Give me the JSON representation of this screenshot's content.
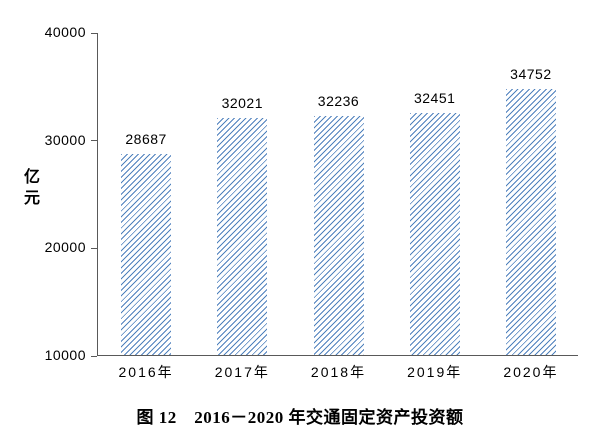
{
  "figure": {
    "caption": "图 12　2016－2020 年交通固定资产投资额",
    "y_axis_unit": "亿元"
  },
  "chart_data": {
    "type": "bar",
    "categories": [
      "2016年",
      "2017年",
      "2018年",
      "2019年",
      "2020年"
    ],
    "values": [
      28687,
      32021,
      32236,
      32451,
      34752
    ],
    "data_labels": [
      "28687",
      "32021",
      "32236",
      "32451",
      "34752"
    ],
    "title": "图 12　2016－2020 年交通固定资产投资额",
    "xlabel": "",
    "ylabel": "亿元",
    "ylim": [
      10000,
      40000
    ],
    "yticks": [
      10000,
      20000,
      30000,
      40000
    ],
    "grid": false,
    "legend_position": "none",
    "bar_fill_style": "diagonal-hatch",
    "bar_color": "#4f81bd",
    "axis_color": "#595959",
    "text_color": "#000000"
  }
}
